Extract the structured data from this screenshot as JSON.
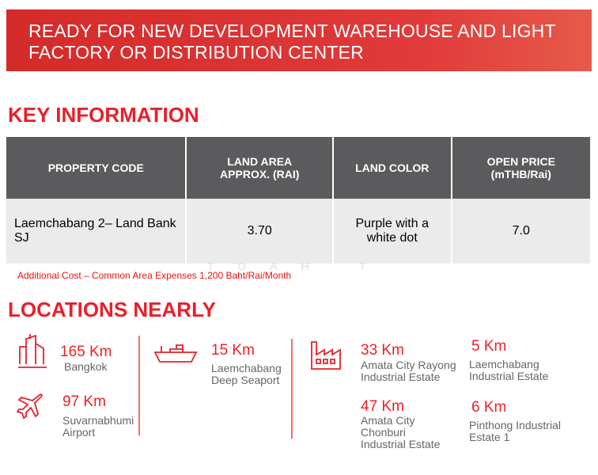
{
  "banner": {
    "title_line1": "READY FOR NEW DEVELOPMENT WAREHOUSE AND LIGHT",
    "title_line2": "FACTORY OR DISTRIBUTION CENTER"
  },
  "key_info": {
    "heading": "KEY INFORMATION",
    "headers": [
      "PROPERTY CODE",
      "LAND AREA APPROX. (RAI)",
      "LAND COLOR",
      "OPEN PRICE (mTHB/Rai)"
    ],
    "row": [
      "Laemchabang 2– Land Bank SJ",
      "3.70",
      "Purple with a white dot",
      "7.0"
    ],
    "note": "Additional Cost – Common Area Expenses 1,200 Baht/Rai/Month"
  },
  "watermark": "TOAH T",
  "locations": {
    "heading": "LOCATIONS NEARLY",
    "items": [
      {
        "icon": "city-buildings-icon",
        "distance": "165 Km",
        "place": "Bangkok"
      },
      {
        "icon": "airplane-icon",
        "distance": "97 Km",
        "place": "Suvarnabhumi Airport"
      },
      {
        "icon": "cargo-ship-icon",
        "distance": "15 Km",
        "place": "Laemchabang Deep Seaport"
      },
      {
        "icon": "factory-icon",
        "distance": "33 Km",
        "place": "Amata City Rayong Industrial Estate"
      },
      {
        "icon": "",
        "distance": "47 Km",
        "place": "Amata City Chonburi Industrial Estate"
      },
      {
        "icon": "",
        "distance": "5 Km",
        "place": "Laemchabang Industrial Estate"
      },
      {
        "icon": "",
        "distance": "6 Km",
        "place": "Pinthong Industrial Estate 1"
      }
    ]
  },
  "colors": {
    "accent": "#e8202a",
    "header_bg": "#5b5b5e",
    "cell_bg": "#ebebeb"
  }
}
